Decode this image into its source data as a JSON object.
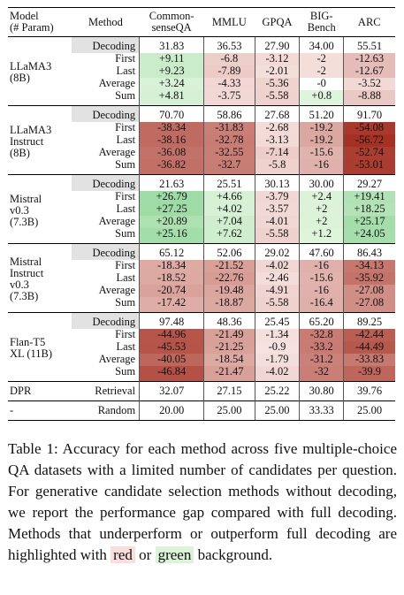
{
  "table": {
    "header": {
      "model": [
        "Model",
        "(# Param)"
      ],
      "method": [
        "Method"
      ],
      "columns": [
        [
          "Common-",
          "senseQA"
        ],
        [
          "MMLU"
        ],
        [
          "GPQA"
        ],
        [
          "BIG-",
          "Bench"
        ],
        [
          "ARC"
        ]
      ]
    },
    "groups": [
      {
        "model": [
          "LLaMA3",
          "(8B)"
        ],
        "rows": [
          {
            "method": "Decoding",
            "values": [
              "31.83",
              "36.53",
              "27.90",
              "34.00",
              "55.51"
            ]
          },
          {
            "method": "First",
            "values": [
              "+9.11",
              "-6.8",
              "-3.12",
              "-2",
              "-12.63"
            ]
          },
          {
            "method": "Last",
            "values": [
              "+9.23",
              "-7.89",
              "-2.01",
              "-2",
              "-12.67"
            ]
          },
          {
            "method": "Average",
            "values": [
              "+3.24",
              "-4.33",
              "-5.36",
              "-0",
              "-3.52"
            ]
          },
          {
            "method": "Sum",
            "values": [
              "+4.81",
              "-3.75",
              "-5.58",
              "+0.8",
              "-8.88"
            ]
          }
        ]
      },
      {
        "model": [
          "LLaMA3",
          "Instruct",
          "(8B)"
        ],
        "rows": [
          {
            "method": "Decoding",
            "values": [
              "70.70",
              "58.86",
              "27.68",
              "51.20",
              "91.70"
            ]
          },
          {
            "method": "First",
            "values": [
              "-38.34",
              "-31.83",
              "-2.68",
              "-19.2",
              "-54.08"
            ]
          },
          {
            "method": "Last",
            "values": [
              "-38.16",
              "-32.78",
              "-3.13",
              "-19.2",
              "-56.72"
            ]
          },
          {
            "method": "Average",
            "values": [
              "-36.08",
              "-32.55",
              "-7.14",
              "-15.6",
              "-52.74"
            ]
          },
          {
            "method": "Sum",
            "values": [
              "-36.82",
              "-32.7",
              "-5.8",
              "-16",
              "-53.01"
            ]
          }
        ]
      },
      {
        "model": [
          "Mistral",
          "v0.3",
          "(7.3B)"
        ],
        "rows": [
          {
            "method": "Decoding",
            "values": [
              "21.63",
              "25.51",
              "30.13",
              "30.00",
              "29.27"
            ]
          },
          {
            "method": "First",
            "values": [
              "+26.79",
              "+4.66",
              "-3.79",
              "+2.4",
              "+19.41"
            ]
          },
          {
            "method": "Last",
            "values": [
              "+27.25",
              "+4.02",
              "-3.57",
              "+2",
              "+18.25"
            ]
          },
          {
            "method": "Average",
            "values": [
              "+20.89",
              "+7.04",
              "-4.01",
              "+2",
              "+25.17"
            ]
          },
          {
            "method": "Sum",
            "values": [
              "+25.16",
              "+7.62",
              "-5.58",
              "+1.2",
              "+24.05"
            ]
          }
        ]
      },
      {
        "model": [
          "Mistral",
          "Instruct",
          "v0.3",
          "(7.3B)"
        ],
        "rows": [
          {
            "method": "Decoding",
            "values": [
              "65.12",
              "52.06",
              "29.02",
              "47.60",
              "86.43"
            ]
          },
          {
            "method": "First",
            "values": [
              "-18.34",
              "-21.52",
              "-4.02",
              "-16",
              "-34.13"
            ]
          },
          {
            "method": "Last",
            "values": [
              "-18.52",
              "-22.76",
              "-2.46",
              "-15.6",
              "-35.92"
            ]
          },
          {
            "method": "Average",
            "values": [
              "-20.74",
              "-19.48",
              "-4.91",
              "-16",
              "-27.08"
            ]
          },
          {
            "method": "Sum",
            "values": [
              "-17.42",
              "-18.87",
              "-5.58",
              "-16.4",
              "-27.08"
            ]
          }
        ]
      },
      {
        "model": [
          "Flan-T5",
          "XL (11B)"
        ],
        "rows": [
          {
            "method": "Decoding",
            "values": [
              "97.48",
              "48.36",
              "25.45",
              "65.20",
              "89.25"
            ]
          },
          {
            "method": "First",
            "values": [
              "-44.96",
              "-21.49",
              "-1.34",
              "-32.8",
              "-42.44"
            ]
          },
          {
            "method": "Last",
            "values": [
              "-45.53",
              "-21.25",
              "-0.9",
              "-33.2",
              "-44.49"
            ]
          },
          {
            "method": "Average",
            "values": [
              "-40.05",
              "-18.54",
              "-1.79",
              "-31.2",
              "-33.83"
            ]
          },
          {
            "method": "Sum",
            "values": [
              "-46.84",
              "-21.47",
              "-4.02",
              "-32",
              "-39.9"
            ]
          }
        ]
      },
      {
        "model": [
          "DPR"
        ],
        "rows": [
          {
            "method": "Retrieval",
            "values": [
              "32.07",
              "27.15",
              "25.22",
              "30.80",
              "39.76"
            ]
          }
        ]
      },
      {
        "model": [
          "-"
        ],
        "rows": [
          {
            "method": "Random",
            "values": [
              "20.00",
              "25.00",
              "25.00",
              "33.33",
              "25.00"
            ]
          }
        ]
      }
    ]
  },
  "caption": {
    "before": "Table 1: Accuracy for each method across five multiple-choice QA datasets with a limited number of candidates per question. For generative candidate selection methods without decoding, we report the performance gap compared with full decoding. Methods that underperform or outperform full decoding are highlighted with",
    "red": "red",
    "or": "or",
    "green": "green",
    "after": "background."
  }
}
